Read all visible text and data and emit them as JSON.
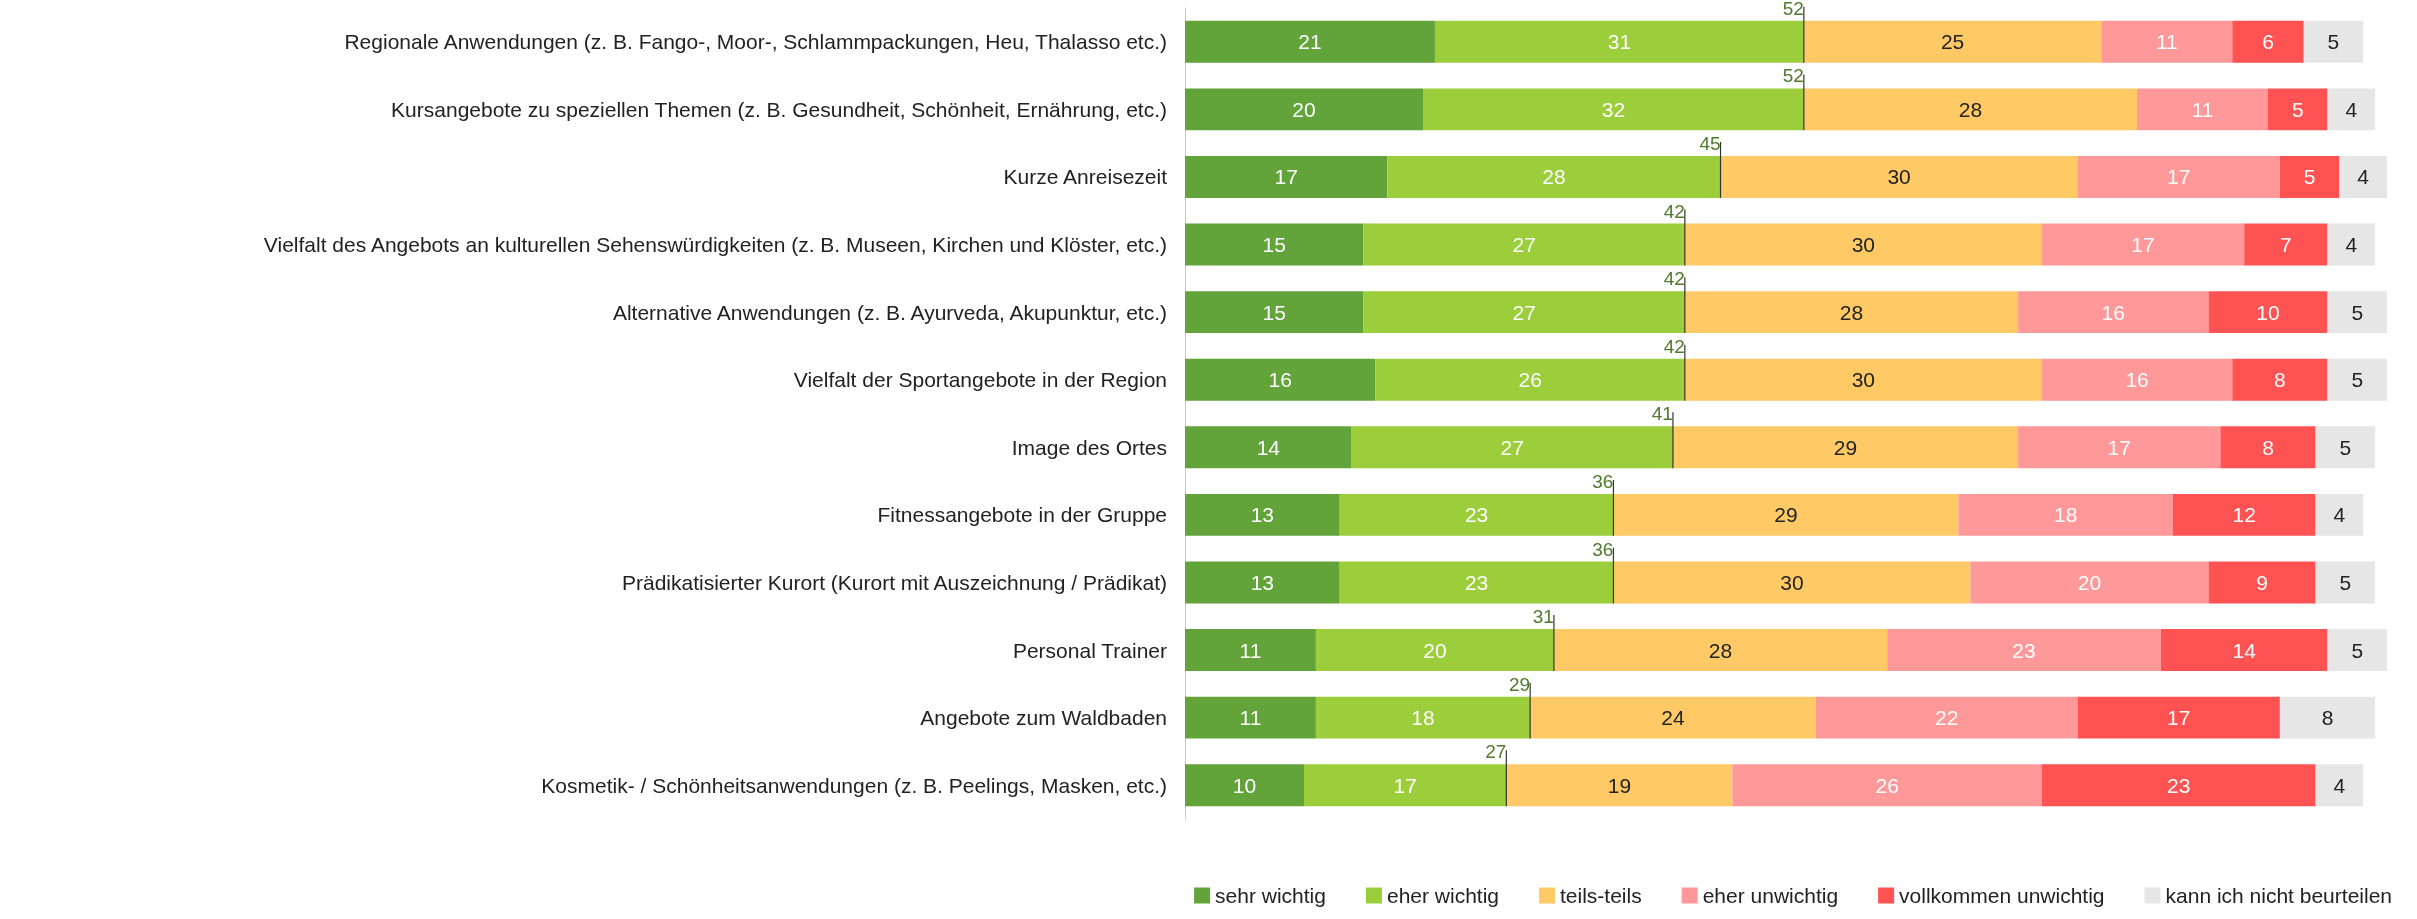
{
  "chart_data": {
    "type": "bar",
    "orientation": "horizontal",
    "stacked": true,
    "data_labels": true,
    "legend": "bottom right",
    "categories": [
      "Regionale Anwendungen (z. B. Fango-, Moor-, Schlammpackungen, Heu, Thalasso etc.)",
      "Kursangebote zu speziellen Themen (z. B. Gesundheit, Schönheit, Ernährung, etc.)",
      "Kurze Anreisezeit",
      "Vielfalt des Angebots an kulturellen Sehenswürdigkeiten (z. B. Museen, Kirchen und Klöster, etc.)",
      "Alternative Anwendungen (z. B. Ayurveda, Akupunktur, etc.)",
      "Vielfalt der Sportangebote in der Region",
      "Image des Ortes",
      "Fitnessangebote in der Gruppe",
      "Prädikatisierter Kurort (Kurort mit Auszeichnung / Prädikat)",
      "Personal Trainer",
      "Angebote zum Waldbaden",
      "Kosmetik- / Schönheitsanwendungen (z. B. Peelings, Masken, etc.)"
    ],
    "series": [
      {
        "name": "sehr wichtig",
        "color": "#62a33a",
        "values": [
          21,
          20,
          17,
          15,
          15,
          16,
          14,
          13,
          13,
          11,
          11,
          10
        ]
      },
      {
        "name": "eher wichtig",
        "color": "#9bce3a",
        "values": [
          31,
          32,
          28,
          27,
          27,
          26,
          27,
          23,
          23,
          20,
          18,
          17
        ]
      },
      {
        "name": "teils-teils",
        "color": "#ffca66",
        "values": [
          25,
          28,
          30,
          30,
          28,
          30,
          29,
          29,
          30,
          28,
          24,
          19
        ]
      },
      {
        "name": "eher unwichtig",
        "color": "#ff9999",
        "values": [
          11,
          11,
          17,
          17,
          16,
          16,
          17,
          18,
          20,
          23,
          22,
          26
        ]
      },
      {
        "name": "vollkommen unwichtig",
        "color": "#ff5252",
        "values": [
          6,
          5,
          5,
          7,
          10,
          8,
          8,
          12,
          9,
          14,
          17,
          23
        ]
      },
      {
        "name": "kann ich nicht beurteilen",
        "color": "#e6e6e6",
        "values": [
          5,
          4,
          4,
          4,
          5,
          5,
          5,
          4,
          5,
          5,
          8,
          4
        ]
      }
    ],
    "annotations": [
      {
        "text": "52",
        "x": 52,
        "y": "Regionale Anwendungen (z. B. Fango-, Moor-, Schlammpackungen, Heu, Thalasso etc.)"
      },
      {
        "text": "52",
        "x": 52,
        "y": "Kursangebote zu speziellen Themen (z. B. Gesundheit, Schönheit, Ernährung, etc.)"
      },
      {
        "text": "45",
        "x": 45,
        "y": "Kurze Anreisezeit"
      },
      {
        "text": "42",
        "x": 42,
        "y": "Vielfalt des Angebots an kulturellen Sehenswürdigkeiten (z. B. Museen, Kirchen und Klöster, etc.)"
      },
      {
        "text": "42",
        "x": 42,
        "y": "Alternative Anwendungen (z. B. Ayurveda, Akupunktur, etc.)"
      },
      {
        "text": "42",
        "x": 42,
        "y": "Vielfalt der Sportangebote in der Region"
      },
      {
        "text": "41",
        "x": 41,
        "y": "Image des Ortes"
      },
      {
        "text": "36",
        "x": 36,
        "y": "Fitnessangebote in der Gruppe"
      },
      {
        "text": "36",
        "x": 36,
        "y": "Prädikatisierter Kurort (Kurort mit Auszeichnung / Prädikat)"
      },
      {
        "text": "31",
        "x": 31,
        "y": "Personal Trainer"
      },
      {
        "text": "29",
        "x": 29,
        "y": "Angebote zum Waldbaden"
      },
      {
        "text": "27",
        "x": 27,
        "y": "Kosmetik- / Schönheitsanwendungen (z. B. Peelings, Masken, etc.)"
      }
    ]
  }
}
